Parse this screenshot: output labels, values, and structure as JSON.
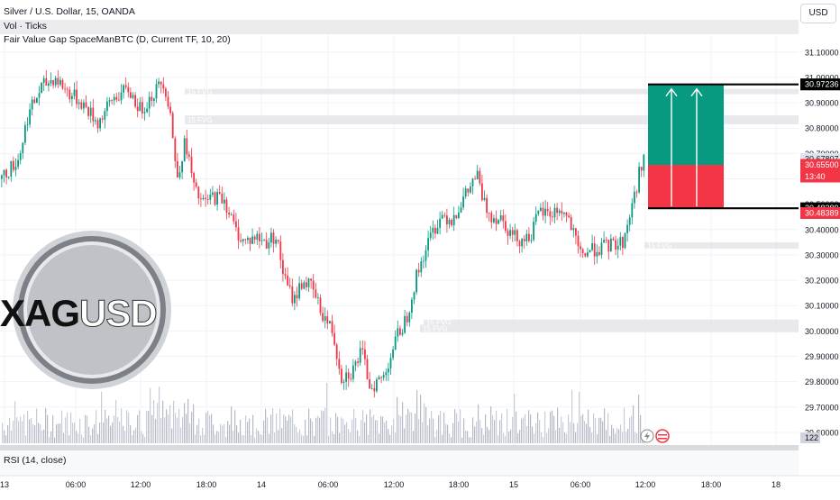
{
  "header": {
    "symbol": "Silver / U.S. Dollar, 15, OANDA",
    "indicator_vol": "Vol · Ticks",
    "indicator_fvg": "Fair Value Gap SpaceManBTC (D, Current TF, 10, 20)",
    "currency": "USD"
  },
  "logo": {
    "text_left": "XAG",
    "text_right": "USD"
  },
  "rsi": {
    "label": "RSI (14, close)"
  },
  "volume_badge": "122",
  "colors": {
    "up": "#089981",
    "down": "#f23645",
    "profit": "#089981",
    "loss": "#f23645",
    "fvg_zone": "#e3e4e8",
    "volume": "#b7bac4",
    "volume_hi": "#c8ccd8",
    "grid": "#f0f3fa"
  },
  "chart_data": {
    "type": "candlestick",
    "y_axis": {
      "range": [
        29.55,
        31.22
      ],
      "ticks": [
        31.1,
        31.0,
        30.9,
        30.8,
        30.7,
        30.6,
        30.5,
        30.4,
        30.3,
        30.2,
        30.1,
        30.0,
        29.9,
        29.8,
        29.7,
        29.6
      ],
      "tick_labels": [
        "31.10000",
        "31.00000",
        "30.90000",
        "30.80000",
        "30.70000",
        "30.60000",
        "30.50000",
        "30.40000",
        "30.30000",
        "30.20000",
        "30.10000",
        "30.00000",
        "29.90000",
        "29.80000",
        "29.70000",
        "29.60000"
      ]
    },
    "x_axis": {
      "range": [
        0,
        886
      ],
      "ticks": [
        {
          "x": 5,
          "label": "13"
        },
        {
          "x": 84,
          "label": "06:00"
        },
        {
          "x": 156,
          "label": "12:00"
        },
        {
          "x": 229,
          "label": "18:00"
        },
        {
          "x": 290,
          "label": "14"
        },
        {
          "x": 364,
          "label": "06:00"
        },
        {
          "x": 437,
          "label": "12:00"
        },
        {
          "x": 509,
          "label": "18:00"
        },
        {
          "x": 570,
          "label": "15"
        },
        {
          "x": 644,
          "label": "06:00"
        },
        {
          "x": 716,
          "label": "12:00"
        },
        {
          "x": 789,
          "label": "18:00"
        },
        {
          "x": 861,
          "label": "18"
        }
      ]
    },
    "price_path": [
      [
        0,
        30.6
      ],
      [
        20,
        30.68
      ],
      [
        30,
        30.85
      ],
      [
        45,
        30.96
      ],
      [
        60,
        31.0
      ],
      [
        75,
        30.94
      ],
      [
        90,
        30.9
      ],
      [
        108,
        30.82
      ],
      [
        125,
        30.92
      ],
      [
        142,
        30.95
      ],
      [
        155,
        30.87
      ],
      [
        168,
        30.93
      ],
      [
        180,
        30.99
      ],
      [
        188,
        30.87
      ],
      [
        195,
        30.6
      ],
      [
        205,
        30.75
      ],
      [
        215,
        30.55
      ],
      [
        225,
        30.5
      ],
      [
        235,
        30.53
      ],
      [
        248,
        30.52
      ],
      [
        260,
        30.4
      ],
      [
        270,
        30.35
      ],
      [
        282,
        30.37
      ],
      [
        295,
        30.35
      ],
      [
        305,
        30.38
      ],
      [
        315,
        30.2
      ],
      [
        325,
        30.12
      ],
      [
        335,
        30.2
      ],
      [
        345,
        30.17
      ],
      [
        355,
        30.08
      ],
      [
        368,
        30.0
      ],
      [
        378,
        29.82
      ],
      [
        390,
        29.84
      ],
      [
        400,
        29.92
      ],
      [
        410,
        29.78
      ],
      [
        425,
        29.82
      ],
      [
        432,
        29.9
      ],
      [
        440,
        29.98
      ],
      [
        450,
        30.05
      ],
      [
        460,
        30.2
      ],
      [
        470,
        30.31
      ],
      [
        480,
        30.4
      ],
      [
        490,
        30.46
      ],
      [
        500,
        30.44
      ],
      [
        510,
        30.5
      ],
      [
        520,
        30.56
      ],
      [
        528,
        30.62
      ],
      [
        536,
        30.5
      ],
      [
        546,
        30.45
      ],
      [
        556,
        30.45
      ],
      [
        566,
        30.38
      ],
      [
        578,
        30.36
      ],
      [
        588,
        30.38
      ],
      [
        598,
        30.47
      ],
      [
        610,
        30.46
      ],
      [
        620,
        30.48
      ],
      [
        630,
        30.44
      ],
      [
        642,
        30.3
      ],
      [
        655,
        30.32
      ],
      [
        668,
        30.33
      ],
      [
        678,
        30.34
      ],
      [
        690,
        30.35
      ],
      [
        698,
        30.46
      ],
      [
        706,
        30.58
      ],
      [
        713,
        30.7
      ],
      [
        718,
        30.65
      ]
    ],
    "volume": {
      "baseline_label": "122"
    },
    "fvg_zones": [
      {
        "label": "15 FVG",
        "y_top": 30.955,
        "y_bottom": 30.935,
        "x_start": 205
      },
      {
        "label": "15 FVG",
        "y_top": 30.85,
        "y_bottom": 30.815,
        "x_start": 205
      },
      {
        "label": "15 FVG",
        "y_top": 30.35,
        "y_bottom": 30.325,
        "x_start": 715
      },
      {
        "label": "15 FVG",
        "y_top": 30.045,
        "y_bottom": 30.03,
        "x_start": 470
      },
      {
        "label": "15 FVG",
        "y_top": 30.025,
        "y_bottom": 29.995,
        "x_start": 466
      }
    ],
    "position": {
      "type": "long",
      "target": 30.97236,
      "entry": 30.655,
      "stop": 30.48389,
      "x_start": 719,
      "x_end": 803
    },
    "price_labels": [
      {
        "text": "30.97257",
        "price": 30.97257,
        "color": "#089981"
      },
      {
        "text": "30.97236",
        "price": 30.97236,
        "color": "#000000"
      },
      {
        "text": "30.67807",
        "price": 30.67807,
        "color": "#e0e3eb"
      },
      {
        "text": "30.65500",
        "price": 30.655,
        "color": "#f23645",
        "subtext": "13:40"
      },
      {
        "text": "30.48389",
        "price": 30.48389,
        "color": "#000000"
      },
      {
        "text": "30.48389",
        "price": 30.465,
        "color": "#f23645"
      }
    ]
  }
}
